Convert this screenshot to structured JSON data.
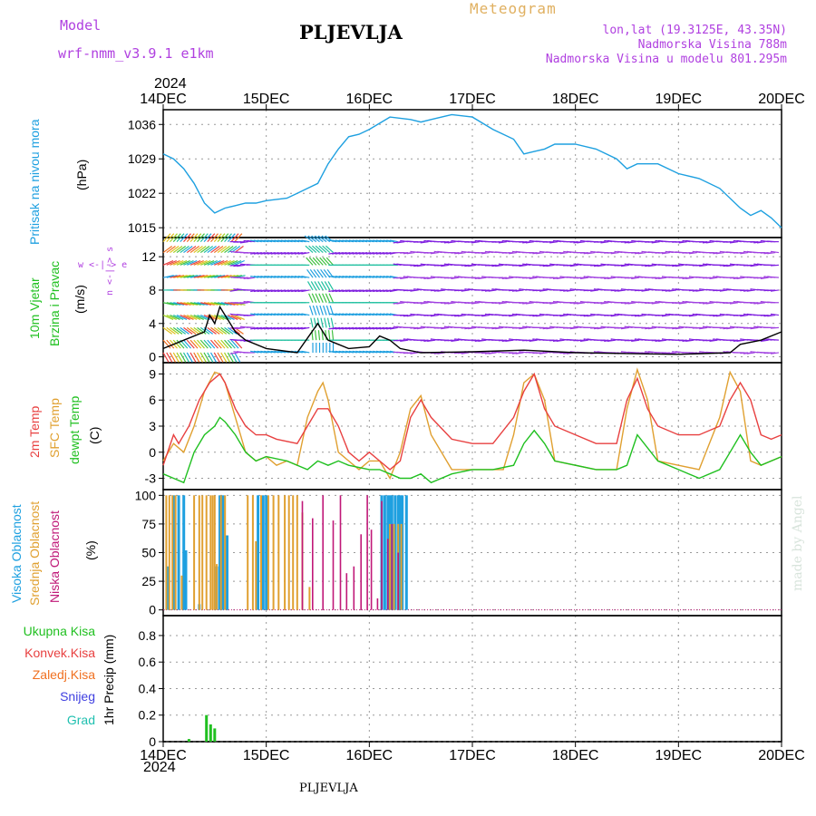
{
  "header": {
    "model_label": "Model",
    "model_name": "wrf-nmm_v3.9.1  e1km",
    "station": "PLJEVLJA",
    "meteogram": "Meteogram",
    "lonlat": "lon,lat (19.3125E, 43.35N)",
    "altitude": "Nadmorska Visina 788m",
    "model_altitude": "Nadmorska Visina u modelu 801.295m",
    "credit": "made by Angel",
    "footer_station": "PLJEVLJA"
  },
  "colors": {
    "pressure": "#1ea0e0",
    "t2m": "#e84040",
    "sfc": "#e0a030",
    "dewpt": "#20c020",
    "high_cloud": "#1ea0e0",
    "mid_cloud": "#e0a030",
    "low_cloud": "#c01878",
    "total_precip": "#20c020",
    "wind_violet": "#8020e0",
    "label_violet": "#b040e0"
  },
  "chart_data": [
    {
      "type": "line",
      "id": "pressure",
      "ylabel": "Pritisak na nivou mora",
      "unit": "(hPa)",
      "ylim": [
        1013,
        1039
      ],
      "yticks": [
        1015,
        1022,
        1029,
        1036
      ],
      "grid": true,
      "year": "2024",
      "x_ticks": [
        "14DEC",
        "15DEC",
        "16DEC",
        "17DEC",
        "18DEC",
        "19DEC",
        "20DEC"
      ],
      "series": [
        {
          "x": [
            0,
            0.1,
            0.2,
            0.3,
            0.4,
            0.5,
            0.6,
            0.7,
            0.8,
            0.9,
            1.0,
            1.2,
            1.3,
            1.4,
            1.5,
            1.6,
            1.7,
            1.8,
            1.9,
            2.0,
            2.2,
            2.4,
            2.5,
            2.6,
            2.8,
            3.0,
            3.2,
            3.4,
            3.5,
            3.6,
            3.7,
            3.8,
            4.0,
            4.2,
            4.4,
            4.5,
            4.6,
            4.8,
            5.0,
            5.2,
            5.4,
            5.6,
            5.7,
            5.8,
            5.9,
            6.0
          ],
          "values": [
            1030,
            1029,
            1027,
            1024,
            1020,
            1018,
            1019,
            1019.5,
            1020,
            1020,
            1020.5,
            1021,
            1022,
            1023,
            1024,
            1028,
            1031,
            1033.5,
            1034,
            1035,
            1037.5,
            1037,
            1036.5,
            1037,
            1038,
            1037.5,
            1035,
            1033,
            1030,
            1030.5,
            1031,
            1032,
            1032,
            1031,
            1029,
            1027,
            1028,
            1028,
            1026,
            1025,
            1023,
            1019,
            1017.5,
            1018.5,
            1017,
            1015
          ]
        }
      ]
    },
    {
      "type": "vector",
      "id": "wind",
      "ylabel_line1": "10m Vjetar",
      "ylabel_line2": "Brzina i Pravac",
      "unit": "(m/s)",
      "compass": "w <-|-> e",
      "compass_n": "n <-|-> s",
      "ylim": [
        -0.7,
        14.3
      ],
      "yticks": [
        0,
        4,
        8,
        12
      ],
      "grid": true,
      "series": [
        {
          "name": "speed",
          "x": [
            0,
            0.2,
            0.4,
            0.45,
            0.5,
            0.55,
            0.6,
            0.7,
            0.8,
            1.0,
            1.3,
            1.5,
            1.55,
            1.6,
            1.7,
            1.8,
            2.0,
            2.1,
            2.2,
            2.3,
            2.5,
            3.0,
            3.5,
            4.0,
            4.5,
            5.0,
            5.5,
            5.6,
            5.8,
            6.0
          ],
          "values": [
            1,
            2,
            3,
            5,
            4,
            6,
            5,
            3,
            2,
            1,
            0.5,
            4,
            3,
            2,
            1.5,
            1,
            1.2,
            2.5,
            2,
            1,
            0.5,
            0.6,
            0.8,
            0.5,
            0.4,
            0.3,
            0.5,
            1.5,
            2,
            3
          ]
        }
      ]
    },
    {
      "type": "line",
      "id": "temperature",
      "ylabel_t2m": "2m Temp",
      "ylabel_sfc": "SFC Temp",
      "ylabel_dewpt": "dewpt Temp",
      "unit": "(C)",
      "ylim": [
        -4.3,
        10.3
      ],
      "yticks": [
        -3,
        0,
        3,
        6,
        9
      ],
      "grid": true,
      "series": [
        {
          "name": "2m Temp",
          "x": [
            0,
            0.1,
            0.15,
            0.25,
            0.35,
            0.45,
            0.55,
            0.6,
            0.7,
            0.8,
            0.9,
            1.0,
            1.1,
            1.3,
            1.4,
            1.5,
            1.6,
            1.7,
            1.8,
            1.9,
            2.0,
            2.1,
            2.2,
            2.3,
            2.4,
            2.5,
            2.6,
            2.8,
            3.0,
            3.2,
            3.4,
            3.5,
            3.6,
            3.7,
            3.8,
            4.0,
            4.2,
            4.4,
            4.5,
            4.6,
            4.7,
            4.8,
            5.0,
            5.2,
            5.4,
            5.5,
            5.6,
            5.7,
            5.8,
            5.9,
            6.0
          ],
          "values": [
            -1.5,
            2,
            1,
            3,
            6,
            8,
            9,
            8,
            5,
            3,
            2,
            2,
            1.5,
            1,
            3,
            5,
            5,
            3,
            0,
            -1,
            0,
            -1,
            -2,
            -1,
            4,
            6,
            4,
            1.5,
            1,
            1,
            4,
            7,
            9,
            5,
            3,
            2,
            1,
            1,
            6,
            8.5,
            5,
            3,
            2,
            2,
            3,
            6,
            8,
            6,
            2,
            1.5,
            2
          ]
        },
        {
          "name": "SFC Temp",
          "x": [
            0,
            0.1,
            0.2,
            0.3,
            0.4,
            0.5,
            0.55,
            0.6,
            0.7,
            0.8,
            0.9,
            1.0,
            1.1,
            1.2,
            1.3,
            1.4,
            1.5,
            1.55,
            1.6,
            1.7,
            1.8,
            1.9,
            2.0,
            2.1,
            2.2,
            2.3,
            2.4,
            2.5,
            2.6,
            2.8,
            3.0,
            3.2,
            3.3,
            3.4,
            3.5,
            3.6,
            3.7,
            3.8,
            4.0,
            4.2,
            4.4,
            4.5,
            4.6,
            4.7,
            4.8,
            5.0,
            5.2,
            5.4,
            5.5,
            5.6,
            5.7,
            5.8,
            5.9,
            6.0
          ],
          "values": [
            -1,
            1,
            0,
            3,
            7,
            9.2,
            9,
            8,
            4,
            0,
            -1,
            -0.5,
            -1.5,
            -1,
            -1.5,
            4,
            7,
            8,
            6,
            0,
            -1,
            -2,
            -1,
            -1,
            -3,
            0,
            5,
            6.5,
            2,
            -2,
            -2,
            -2,
            -2,
            2,
            8,
            9,
            6,
            -1,
            -1.5,
            -2,
            -2,
            5,
            9.5,
            6,
            -1,
            -1.5,
            -2,
            4,
            9.2,
            7,
            -1,
            -1.5,
            -1,
            -0.5
          ]
        },
        {
          "name": "dewpt Temp",
          "x": [
            0,
            0.1,
            0.2,
            0.3,
            0.4,
            0.5,
            0.55,
            0.6,
            0.7,
            0.8,
            0.9,
            1.0,
            1.2,
            1.4,
            1.5,
            1.6,
            1.7,
            1.8,
            2.0,
            2.1,
            2.2,
            2.3,
            2.4,
            2.5,
            2.6,
            2.8,
            3.0,
            3.2,
            3.4,
            3.5,
            3.6,
            3.7,
            3.8,
            4.0,
            4.2,
            4.4,
            4.5,
            4.6,
            4.8,
            5.0,
            5.2,
            5.4,
            5.5,
            5.6,
            5.7,
            5.8,
            6.0
          ],
          "values": [
            -2.5,
            -3,
            -3.5,
            0,
            2,
            3,
            4,
            3.5,
            2,
            0,
            -1,
            -0.5,
            -1,
            -2,
            -1,
            -1.5,
            -1,
            -1.5,
            -2,
            -2,
            -2.5,
            -3,
            -3,
            -2.5,
            -3.5,
            -2.5,
            -2,
            -2,
            -1.5,
            1,
            2.5,
            1,
            -1,
            -1.5,
            -2,
            -2,
            -1.5,
            2,
            -1,
            -2,
            -3,
            -2,
            0,
            2,
            0,
            -1.5,
            -0.5
          ]
        }
      ]
    },
    {
      "type": "bar",
      "id": "cloud",
      "ylabel_high": "Visoka Oblacnost",
      "ylabel_mid": "Srednja Oblacnost",
      "ylabel_low": "Niska Oblacnost",
      "unit": "(%)",
      "ylim": [
        -5,
        105
      ],
      "yticks": [
        0,
        25,
        50,
        75,
        100
      ],
      "grid": true,
      "high": {
        "x": [
          0.05,
          0.1,
          0.15,
          0.2,
          0.22,
          0.35,
          0.52,
          0.55,
          0.58,
          0.62,
          0.92,
          0.97,
          1.0,
          2.12,
          2.15,
          2.18,
          2.2,
          2.22,
          2.25,
          2.28,
          2.3,
          2.32,
          2.36
        ],
        "values": [
          38,
          100,
          100,
          100,
          52,
          5,
          38,
          100,
          100,
          65,
          100,
          100,
          100,
          100,
          100,
          100,
          100,
          100,
          100,
          100,
          100,
          100,
          100
        ]
      },
      "mid": {
        "x": [
          0.03,
          0.06,
          0.09,
          0.12,
          0.18,
          0.3,
          0.35,
          0.38,
          0.42,
          0.46,
          0.48,
          0.5,
          0.52,
          0.56,
          0.6,
          0.82,
          0.87,
          0.9,
          0.95,
          1.02,
          1.07,
          1.12,
          1.18,
          1.22,
          1.26,
          1.3,
          1.35,
          1.42,
          2.2,
          2.24,
          2.28,
          2.31
        ],
        "values": [
          100,
          100,
          100,
          100,
          30,
          100,
          100,
          100,
          100,
          100,
          100,
          100,
          40,
          100,
          100,
          100,
          100,
          60,
          100,
          100,
          100,
          100,
          100,
          100,
          100,
          100,
          85,
          20,
          75,
          75,
          75,
          75
        ]
      },
      "low": {
        "x": [
          1.35,
          1.45,
          1.55,
          1.65,
          1.72,
          1.78,
          1.85,
          1.92,
          1.98,
          2.02,
          2.08,
          2.12,
          2.18,
          2.22,
          2.28
        ],
        "values": [
          95,
          80,
          100,
          78,
          100,
          32,
          38,
          66,
          100,
          70,
          10,
          95,
          62,
          75,
          50
        ]
      }
    },
    {
      "type": "bar",
      "id": "precip",
      "legend": [
        "Ukupna Kisa",
        "Konvek.Kisa",
        "Zaledj.Kisa",
        "Snijeg",
        "Grad"
      ],
      "ylabel": "1hr Precip (mm)",
      "ylim": [
        0,
        0.95
      ],
      "yticks": [
        0,
        0.2,
        0.4,
        0.6,
        0.8
      ],
      "grid": true,
      "series": [
        {
          "name": "Ukupna Kisa",
          "x": [
            0.25,
            0.42,
            0.46,
            0.5
          ],
          "values": [
            0.02,
            0.2,
            0.13,
            0.1
          ]
        }
      ]
    }
  ]
}
